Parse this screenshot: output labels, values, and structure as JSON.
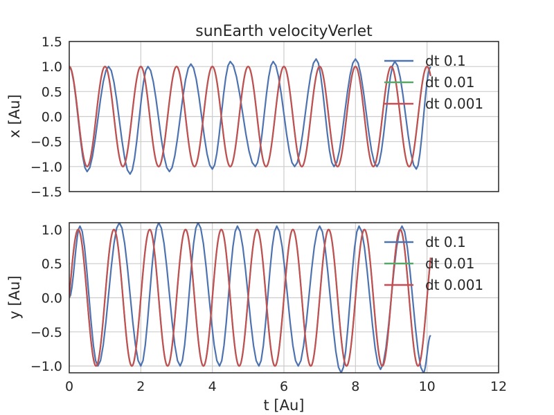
{
  "chart_data": [
    {
      "type": "line",
      "title": "sunEarth velocityVerlet",
      "xlabel": "",
      "ylabel": "x [Au]",
      "xlim": [
        0,
        12
      ],
      "ylim": [
        -1.5,
        1.5
      ],
      "xticks": [
        0,
        2,
        4,
        6,
        8,
        10,
        12
      ],
      "yticks": [
        -1.5,
        -1.0,
        -0.5,
        0.0,
        0.5,
        1.0,
        1.5
      ],
      "xtick_labels_visible": false,
      "ytick_labels": [
        "−1.5",
        "−1.0",
        "−0.5",
        "0.0",
        "0.5",
        "1.0",
        "1.5"
      ],
      "grid": true,
      "legend_position": "top-right",
      "series": [
        {
          "name": "dt 0.1",
          "color": "#4c72b0",
          "dt": 0.1,
          "t_end": 10.1,
          "component": "x",
          "approx_points": [
            [
              0,
              1.0
            ],
            [
              0.5,
              -1.1
            ],
            [
              1.1,
              1.0
            ],
            [
              1.7,
              -1.15
            ],
            [
              2.2,
              1.0
            ],
            [
              2.8,
              -1.1
            ],
            [
              3.4,
              1.05
            ],
            [
              4.0,
              -1.05
            ],
            [
              4.5,
              1.1
            ],
            [
              5.2,
              -1.0
            ],
            [
              5.7,
              1.1
            ],
            [
              6.3,
              -1.0
            ],
            [
              6.9,
              1.15
            ],
            [
              7.4,
              -1.0
            ],
            [
              8.0,
              1.15
            ],
            [
              8.6,
              -1.0
            ],
            [
              9.1,
              1.1
            ],
            [
              9.7,
              -1.05
            ],
            [
              10.1,
              1.0
            ]
          ]
        },
        {
          "name": "dt 0.01",
          "color": "#55a868",
          "dt": 0.01,
          "t_end": 10.1,
          "component": "x",
          "amplitude": 1.0,
          "period": 1.0
        },
        {
          "name": "dt 0.001",
          "color": "#c44e52",
          "dt": 0.001,
          "t_end": 10.1,
          "component": "x",
          "amplitude": 1.0,
          "period": 1.0
        }
      ]
    },
    {
      "type": "line",
      "title": "",
      "xlabel": "t [Au]",
      "ylabel": "y [Au]",
      "xlim": [
        0,
        12
      ],
      "ylim": [
        -1.1,
        1.1
      ],
      "xticks": [
        0,
        2,
        4,
        6,
        8,
        10,
        12
      ],
      "yticks": [
        -1.0,
        -0.5,
        0.0,
        0.5,
        1.0
      ],
      "xtick_labels": [
        "0",
        "2",
        "4",
        "6",
        "8",
        "10",
        "12"
      ],
      "ytick_labels": [
        "−1.0",
        "−0.5",
        "0.0",
        "0.5",
        "1.0"
      ],
      "grid": true,
      "legend_position": "top-right",
      "series": [
        {
          "name": "dt 0.1",
          "color": "#4c72b0",
          "dt": 0.1,
          "t_end": 10.1,
          "component": "y",
          "approx_points": [
            [
              0,
              0.0
            ],
            [
              0.3,
              1.05
            ],
            [
              0.8,
              -1.0
            ],
            [
              1.4,
              1.1
            ],
            [
              2.0,
              -1.0
            ],
            [
              2.5,
              1.1
            ],
            [
              3.1,
              -1.0
            ],
            [
              3.6,
              1.1
            ],
            [
              4.2,
              -1.0
            ],
            [
              4.7,
              1.05
            ],
            [
              5.3,
              -1.0
            ],
            [
              5.8,
              1.05
            ],
            [
              6.4,
              -1.0
            ],
            [
              7.0,
              1.05
            ],
            [
              7.6,
              -1.1
            ],
            [
              8.1,
              1.05
            ],
            [
              8.7,
              -1.05
            ],
            [
              9.3,
              1.05
            ],
            [
              9.9,
              -1.1
            ],
            [
              10.1,
              -0.55
            ]
          ]
        },
        {
          "name": "dt 0.01",
          "color": "#55a868",
          "dt": 0.01,
          "t_end": 10.1,
          "component": "y",
          "amplitude": 1.0,
          "period": 1.0
        },
        {
          "name": "dt 0.001",
          "color": "#c44e52",
          "dt": 0.001,
          "t_end": 10.1,
          "component": "y",
          "amplitude": 1.0,
          "period": 1.0
        }
      ]
    }
  ]
}
